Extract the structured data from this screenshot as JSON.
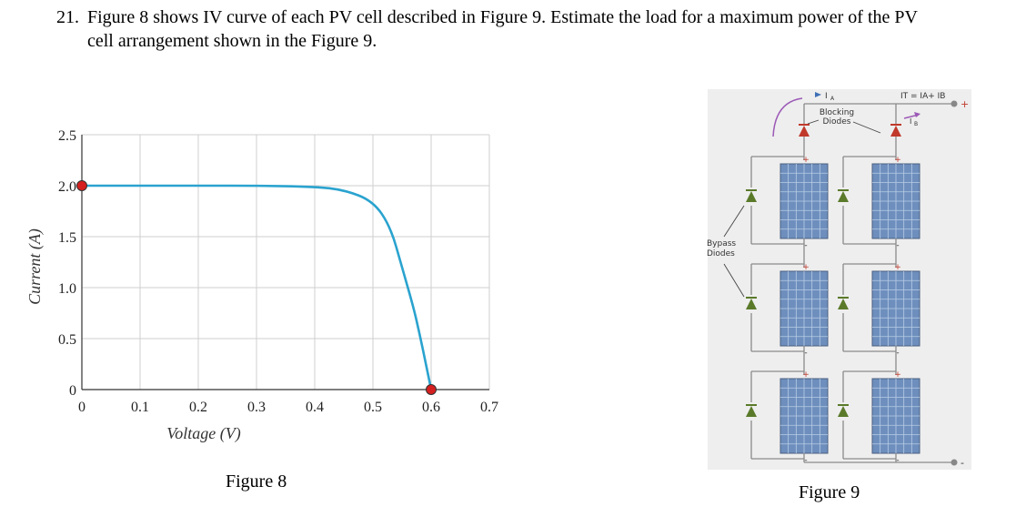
{
  "question": {
    "number": "21.",
    "line1": "Figure 8 shows IV curve of each PV cell described in Figure 9. Estimate the load for a maximum power of the PV",
    "line2": "cell arrangement shown in the Figure 9."
  },
  "figure8": {
    "caption": "Figure 8",
    "chart_data": {
      "type": "line",
      "xlabel": "Voltage (V)",
      "ylabel": "Current (A)",
      "xlim": [
        0,
        0.7
      ],
      "ylim": [
        0,
        2.5
      ],
      "x_ticks": [
        "0",
        "0.1",
        "0.2",
        "0.3",
        "0.4",
        "0.5",
        "0.6",
        "0.7"
      ],
      "y_ticks": [
        "0",
        "0.5",
        "1.0",
        "1.5",
        "2.0",
        "2.5"
      ],
      "grid": true,
      "series": [
        {
          "color": "#2aa3cf",
          "x": [
            0,
            0.1,
            0.2,
            0.3,
            0.4,
            0.45,
            0.5,
            0.53,
            0.55,
            0.57,
            0.58,
            0.59,
            0.6
          ],
          "y": [
            2.0,
            2.0,
            2.0,
            2.0,
            1.99,
            1.96,
            1.85,
            1.6,
            1.2,
            0.8,
            0.55,
            0.28,
            0.0
          ]
        }
      ],
      "highlighted_points": [
        {
          "x": 0,
          "y": 2.0,
          "color": "#d42020"
        },
        {
          "x": 0.6,
          "y": 0,
          "color": "#d42020"
        }
      ]
    }
  },
  "figure9": {
    "caption": "Figure 9",
    "labels": {
      "ia": "I",
      "ia_sub": "A",
      "it": "I",
      "it_sub": "T",
      "it_eq": " = I",
      "it_sub2": "A",
      "it_plus": "+ I",
      "it_sub3": "B",
      "ib": "I",
      "ib_sub": "B",
      "blocking_line1": "Blocking",
      "blocking_line2": "Diodes",
      "bypass_line1": "Bypass",
      "bypass_line2": "Diodes",
      "plus": "+",
      "minus": "-"
    },
    "colors": {
      "panel_bg": "#eeeeee",
      "cell_fill": "#6e8fbd",
      "cell_grid": "#b9cce6",
      "blocking_diode": "#c0392b",
      "bypass_diode": "#5a7a2a",
      "wire": "#8a8a8a",
      "arrow_purple": "#9b59b6",
      "arrow_blue": "#3e6fb5"
    }
  }
}
